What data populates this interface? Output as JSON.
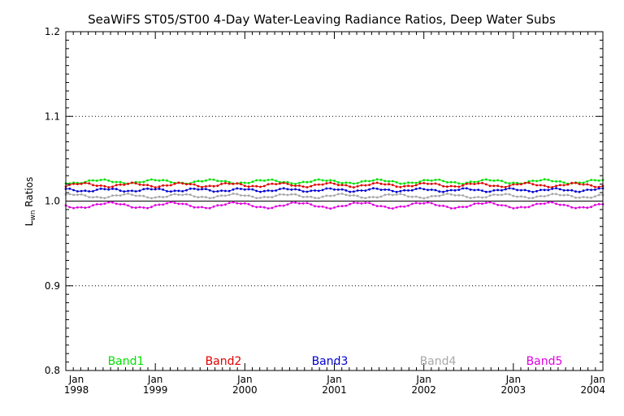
{
  "chart_data": {
    "type": "line",
    "title": "SeaWiFS ST05/ST00 4-Day Water-Leaving Radiance Ratios, Deep Water Subs",
    "ylabel_main": "L",
    "ylabel_sub": "wn",
    "ylabel_rest": " Ratios",
    "ylim": [
      0.8,
      1.2
    ],
    "xlim": [
      1998.0,
      2004.0
    ],
    "y_ticks": [
      "0.8",
      "0.9",
      "1.0",
      "1.1",
      "1.2"
    ],
    "x_ticks": [
      {
        "month": "Jan",
        "year": "1998",
        "x": 1998.0
      },
      {
        "month": "Jan",
        "year": "1999",
        "x": 1999.0
      },
      {
        "month": "Jan",
        "year": "2000",
        "x": 2000.0
      },
      {
        "month": "Jan",
        "year": "2001",
        "x": 2001.0
      },
      {
        "month": "Jan",
        "year": "2002",
        "x": 2002.0
      },
      {
        "month": "Jan",
        "year": "2003",
        "x": 2003.0
      },
      {
        "month": "Jan",
        "year": "2004",
        "x": 2004.0
      }
    ],
    "grid_y": [
      0.9,
      1.0,
      1.1
    ],
    "reference_line": 1.0,
    "legend_position": "bottom",
    "series": [
      {
        "name": "Band1",
        "color": "#00e000",
        "base": 1.023,
        "amp": 0.002,
        "period": 0.62,
        "phase": 0.3
      },
      {
        "name": "Band2",
        "color": "#e00000",
        "base": 1.019,
        "amp": 0.002,
        "period": 0.55,
        "phase": 1.1
      },
      {
        "name": "Band3",
        "color": "#0000d0",
        "base": 1.013,
        "amp": 0.0015,
        "period": 0.5,
        "phase": 2.0
      },
      {
        "name": "Band4",
        "color": "#a8a8a8",
        "base": 1.006,
        "amp": 0.002,
        "period": 0.6,
        "phase": 0.7
      },
      {
        "name": "Band5",
        "color": "#e000e0",
        "base": 0.995,
        "amp": 0.003,
        "period": 0.7,
        "phase": 1.6
      }
    ]
  }
}
